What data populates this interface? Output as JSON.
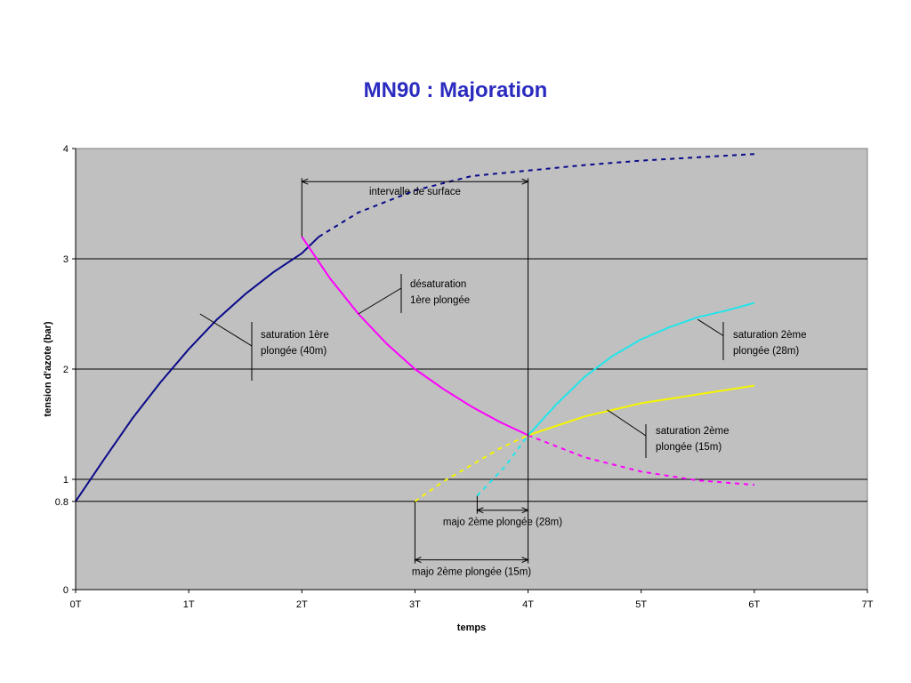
{
  "chart_data": {
    "type": "line",
    "title": "MN90 : Majoration",
    "xlabel": "temps",
    "ylabel": "tension d'azote (bar)",
    "xlim": [
      0,
      7
    ],
    "ylim": [
      0,
      4
    ],
    "x_ticks": [
      0,
      1,
      2,
      3,
      4,
      5,
      6,
      7
    ],
    "x_tick_labels": [
      "0T",
      "1T",
      "2T",
      "3T",
      "4T",
      "5T",
      "6T",
      "7T"
    ],
    "y_ticks": [
      0,
      0.8,
      1,
      2,
      3,
      4
    ],
    "y_tick_labels": [
      "0",
      "0.8",
      "1",
      "2",
      "3",
      "4"
    ],
    "y_gridlines": [
      0.8,
      1,
      2,
      3
    ],
    "background": "#c0c0c0",
    "colors": {
      "navy": "#0a0a8a",
      "magenta": "#ff00ff",
      "cyan": "#22e5ea",
      "yellow": "#f5f500",
      "title": "#2b2bbf"
    },
    "series": [
      {
        "style": "solid",
        "color": "navy",
        "points": [
          [
            0,
            0.8
          ],
          [
            0.25,
            1.18
          ],
          [
            0.5,
            1.55
          ],
          [
            0.75,
            1.88
          ],
          [
            1,
            2.18
          ],
          [
            1.25,
            2.45
          ],
          [
            1.5,
            2.68
          ],
          [
            1.75,
            2.88
          ],
          [
            2,
            3.05
          ],
          [
            2.15,
            3.2
          ]
        ]
      },
      {
        "style": "dashed",
        "color": "navy",
        "points": [
          [
            2.15,
            3.2
          ],
          [
            2.5,
            3.42
          ],
          [
            3,
            3.62
          ],
          [
            3.5,
            3.75
          ],
          [
            4,
            3.8
          ],
          [
            4.5,
            3.85
          ],
          [
            5,
            3.89
          ],
          [
            5.5,
            3.92
          ],
          [
            6,
            3.95
          ]
        ]
      },
      {
        "style": "solid",
        "color": "magenta",
        "points": [
          [
            2,
            3.2
          ],
          [
            2.25,
            2.82
          ],
          [
            2.5,
            2.5
          ],
          [
            2.75,
            2.23
          ],
          [
            3,
            2
          ],
          [
            3.25,
            1.82
          ],
          [
            3.5,
            1.66
          ],
          [
            3.75,
            1.52
          ],
          [
            4,
            1.4
          ]
        ]
      },
      {
        "style": "dashed",
        "color": "magenta",
        "points": [
          [
            4,
            1.4
          ],
          [
            4.5,
            1.2
          ],
          [
            5,
            1.07
          ],
          [
            5.5,
            0.99
          ],
          [
            6,
            0.95
          ]
        ]
      },
      {
        "style": "dashed",
        "color": "yellow",
        "points": [
          [
            3,
            0.8
          ],
          [
            3.25,
            0.98
          ],
          [
            3.5,
            1.13
          ],
          [
            3.75,
            1.28
          ],
          [
            4,
            1.4
          ]
        ]
      },
      {
        "style": "solid",
        "color": "yellow",
        "points": [
          [
            4,
            1.4
          ],
          [
            4.5,
            1.57
          ],
          [
            5,
            1.69
          ],
          [
            5.5,
            1.77
          ],
          [
            6,
            1.85
          ]
        ]
      },
      {
        "style": "dashed",
        "color": "cyan",
        "points": [
          [
            3.55,
            0.85
          ],
          [
            3.8,
            1.12
          ],
          [
            4,
            1.4
          ]
        ]
      },
      {
        "style": "solid",
        "color": "cyan",
        "points": [
          [
            4,
            1.4
          ],
          [
            4.25,
            1.68
          ],
          [
            4.5,
            1.93
          ],
          [
            4.75,
            2.12
          ],
          [
            5,
            2.27
          ],
          [
            5.25,
            2.38
          ],
          [
            5.5,
            2.47
          ],
          [
            5.75,
            2.53
          ],
          [
            6,
            2.6
          ]
        ]
      }
    ],
    "annotations": {
      "saturation_1": {
        "lines": [
          "saturation 1ère",
          "plongée (40m)"
        ]
      },
      "desaturation": {
        "lines": [
          "désaturation",
          "1ère plongée"
        ]
      },
      "saturation_28": {
        "lines": [
          "saturation 2ème",
          "plongée (28m)"
        ]
      },
      "saturation_15": {
        "lines": [
          "saturation 2ème",
          "plongée (15m)"
        ]
      },
      "intervalle": {
        "label": "intervalle de surface",
        "from": 2,
        "to": 4,
        "level": 3.7
      },
      "majo_28": {
        "label": "majo 2ème plongée (28m)",
        "from": 3.55,
        "to": 4,
        "level": 0.72
      },
      "majo_15": {
        "label": "majo 2ème plongée (15m)",
        "from": 3,
        "to": 4,
        "level": 0.27
      }
    }
  }
}
